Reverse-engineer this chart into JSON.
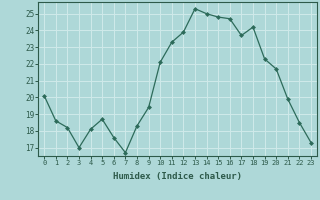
{
  "x": [
    0,
    1,
    2,
    3,
    4,
    5,
    6,
    7,
    8,
    9,
    10,
    11,
    12,
    13,
    14,
    15,
    16,
    17,
    18,
    19,
    20,
    21,
    22,
    23
  ],
  "y": [
    20.1,
    18.6,
    18.2,
    17.0,
    18.1,
    18.7,
    17.6,
    16.7,
    18.3,
    19.4,
    22.1,
    23.3,
    23.9,
    25.3,
    25.0,
    24.8,
    24.7,
    23.7,
    24.2,
    22.3,
    21.7,
    19.9,
    18.5,
    17.3
  ],
  "title": "",
  "xlabel": "Humidex (Indice chaleur)",
  "ylabel": "",
  "xlim": [
    -0.5,
    23.5
  ],
  "ylim": [
    16.5,
    25.7
  ],
  "yticks": [
    17,
    18,
    19,
    20,
    21,
    22,
    23,
    24,
    25
  ],
  "xticks": [
    0,
    1,
    2,
    3,
    4,
    5,
    6,
    7,
    8,
    9,
    10,
    11,
    12,
    13,
    14,
    15,
    16,
    17,
    18,
    19,
    20,
    21,
    22,
    23
  ],
  "bg_color": "#aed8d8",
  "line_color": "#2d6b5a",
  "marker_color": "#2d6b5a",
  "grid_color": "#d0eaea",
  "tick_color": "#2d5a4a",
  "spine_color": "#2d5a4a"
}
